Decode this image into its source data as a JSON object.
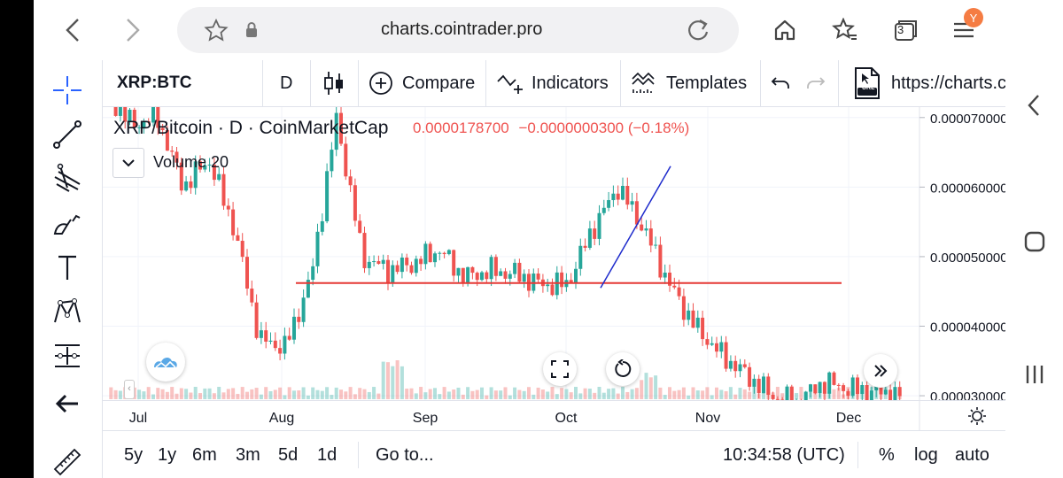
{
  "browser": {
    "url": "charts.cointrader.pro",
    "tab_count": "3",
    "avatar_letter": "Y"
  },
  "toolbar": {
    "symbol": "XRP:BTC",
    "interval": "D",
    "compare_label": "Compare",
    "indicators_label": "Indicators",
    "templates_label": "Templates",
    "url_badge": "URL",
    "share_url": "https://charts.coin"
  },
  "legend": {
    "title": "XRP/Bitcoin · D · CoinMarketCap",
    "price": "0.0000178700",
    "change": "−0.0000000300 (−0.18%)",
    "volume_label": "Volume 20"
  },
  "bottom": {
    "ranges": [
      "5y",
      "1y",
      "6m",
      "3m",
      "5d",
      "1d"
    ],
    "goto_label": "Go to...",
    "time": "10:34:58 (UTC)",
    "percent_label": "%",
    "log_label": "log",
    "auto_label": "auto"
  },
  "chart_data": {
    "type": "candlestick",
    "x_ticks": [
      "Jul",
      "Aug",
      "Sep",
      "Oct",
      "Nov",
      "Dec"
    ],
    "y_ticks": [
      "0.0000700000",
      "0.0000600000",
      "0.0000500000",
      "0.0000400000",
      "0.0000300000"
    ],
    "ylim": [
      2.95e-05,
      7.15e-05
    ],
    "candle_color_up": "#26a69a",
    "candle_color_down": "#ef5350",
    "close_path": [
      7.35e-05,
      6.9e-05,
      7e-05,
      6e-05,
      6.4e-05,
      5.4e-05,
      3.8e-05,
      3.7e-05,
      4.7e-05,
      7e-05,
      5e-05,
      4.8e-05,
      4.9e-05,
      5.1e-05,
      4.7e-05,
      4.8e-05,
      4.75e-05,
      4.6e-05,
      4.6e-05,
      5.4e-05,
      6e-05,
      5.4e-05,
      4.6e-05,
      4e-05,
      3.6e-05,
      3.3e-05,
      3e-05,
      2.9e-05,
      3.2e-05,
      3.1e-05,
      3.05e-05,
      3e-05
    ],
    "support_line": 4.62e-05,
    "trend_line": {
      "from": [
        "Oct",
        4.55e-05
      ],
      "to": [
        "Oct+12d",
        6.3e-05
      ]
    }
  }
}
